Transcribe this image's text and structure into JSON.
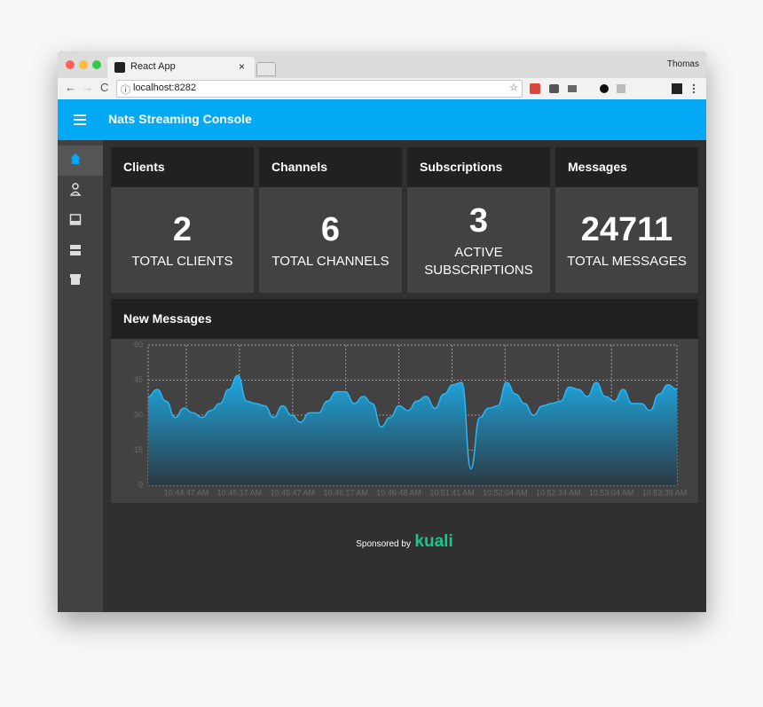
{
  "browser": {
    "tab_title": "React App",
    "url": "localhost:8282",
    "user": "Thomas"
  },
  "app": {
    "title": "Nats Streaming Console"
  },
  "cards": [
    {
      "title": "Clients",
      "value": 2,
      "label": "TOTAL CLIENTS"
    },
    {
      "title": "Channels",
      "value": 6,
      "label": "TOTAL CHANNELS"
    },
    {
      "title": "Subscriptions",
      "value": 3,
      "label": "ACTIVE SUBSCRIPTIONS"
    },
    {
      "title": "Messages",
      "value": 24711,
      "label": "TOTAL MESSAGES"
    }
  ],
  "chart": {
    "title": "New Messages",
    "type": "area",
    "color": "#29b6f6",
    "ylim": [
      0,
      60
    ],
    "yticks": [
      0,
      15,
      30,
      45,
      60
    ],
    "x_labels": [
      "10:44:47 AM",
      "10:45:17 AM",
      "10:45:47 AM",
      "10:46:17 AM",
      "10:46:48 AM",
      "10:51:41 AM",
      "10:52:04 AM",
      "10:52:34 AM",
      "10:53:04 AM",
      "10:53:39 AM"
    ],
    "values": [
      38,
      41,
      36,
      29,
      33,
      31,
      29,
      32,
      35,
      41,
      47,
      36,
      35,
      34,
      29,
      34,
      30,
      27,
      31,
      31,
      36,
      40,
      40,
      35,
      38,
      35,
      25,
      29,
      34,
      32,
      36,
      38,
      33,
      39,
      43,
      44,
      7,
      29,
      33,
      34,
      44,
      39,
      35,
      30,
      34,
      35,
      36,
      42,
      41,
      38,
      44,
      38,
      36,
      41,
      35,
      35,
      32,
      39,
      43,
      41
    ]
  },
  "footer": {
    "text": "Sponsored by",
    "brand": "kuali"
  }
}
